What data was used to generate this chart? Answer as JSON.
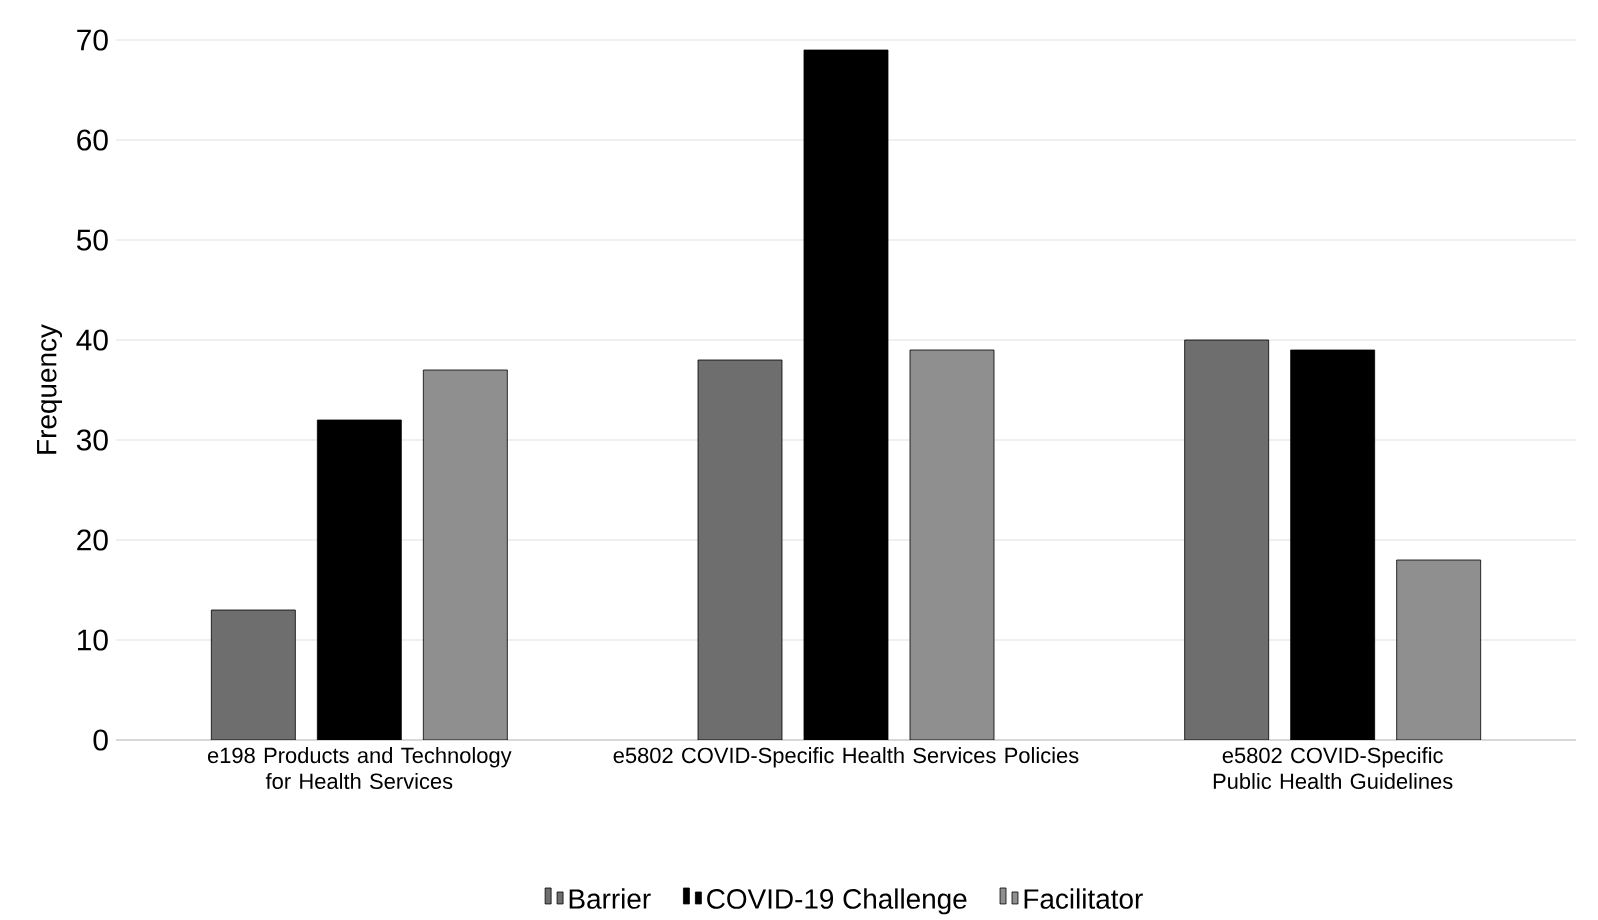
{
  "chart_data": {
    "type": "bar",
    "ylabel": "Frequency",
    "categories": [
      "e198 Products and Technology for Health Services",
      "e5802 COVID-Specific Health Services Policies",
      "e5802 COVID-Specific Public Health Guidelines"
    ],
    "series": [
      {
        "name": "Barrier",
        "color": "#6e6e6e",
        "values": [
          13,
          38,
          40
        ]
      },
      {
        "name": "COVID-19 Challenge",
        "color": "#000000",
        "values": [
          32,
          69,
          39
        ]
      },
      {
        "name": "Facilitator",
        "color": "#8f8f8f",
        "values": [
          37,
          39,
          18
        ]
      }
    ],
    "ylim": [
      0,
      70
    ],
    "yticks": [
      0,
      10,
      20,
      30,
      40,
      50,
      60,
      70
    ],
    "grid": "y",
    "legend": "bottom"
  }
}
